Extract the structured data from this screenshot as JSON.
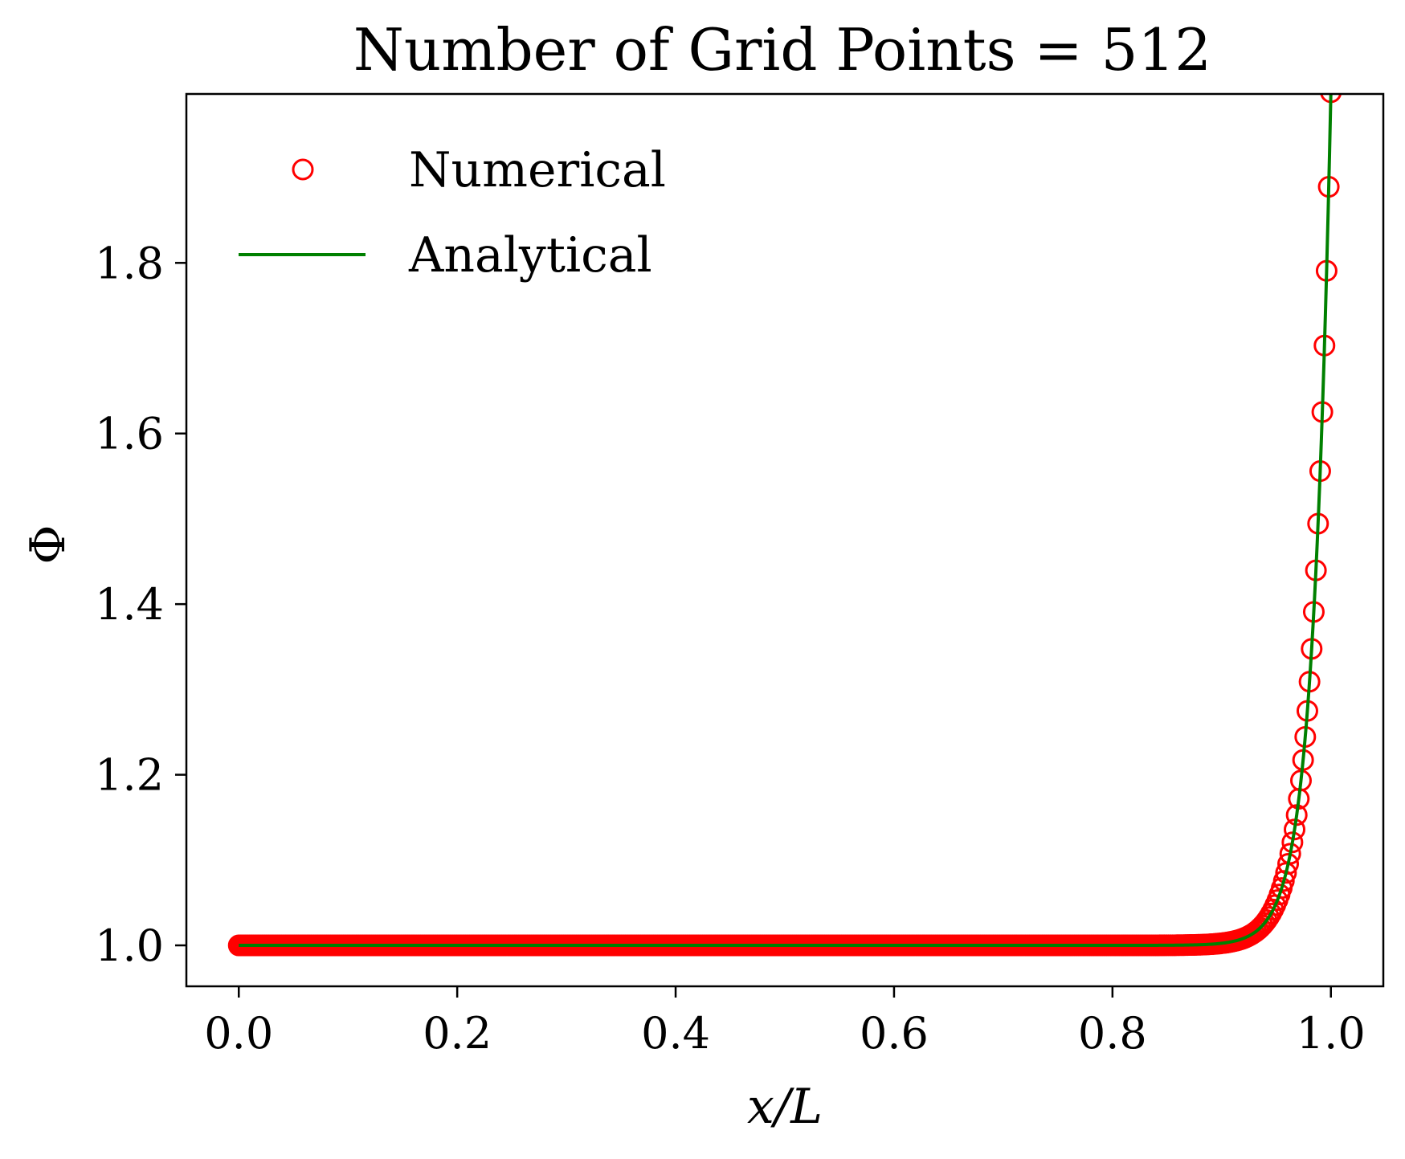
{
  "chart_data": {
    "type": "line",
    "title": "Number of Grid Points = 512",
    "xlabel": "x/L",
    "ylabel": "Φ",
    "xlim": [
      -0.048,
      1.048
    ],
    "ylim": [
      0.952,
      1.998
    ],
    "x_ticks": [
      0.0,
      0.2,
      0.4,
      0.6,
      0.8,
      1.0
    ],
    "x_tick_labels": [
      "0.0",
      "0.2",
      "0.4",
      "0.6",
      "0.8",
      "1.0"
    ],
    "y_ticks": [
      1.0,
      1.2,
      1.4,
      1.6,
      1.8
    ],
    "y_tick_labels": [
      "1.0",
      "1.2",
      "1.4",
      "1.6",
      "1.8"
    ],
    "grid": false,
    "legend_position": "top-left",
    "series": [
      {
        "name": "Numerical",
        "style": "markers",
        "marker": "open-circle",
        "color": "#ff0000",
        "n_points": 512,
        "x_range": [
          0.0,
          1.0
        ],
        "model": "Phi = 1 + (exp(k*x) - 1)/(exp(k) - 1)",
        "k": 60
      },
      {
        "name": "Analytical",
        "style": "line",
        "color": "#008000",
        "x_range": [
          0.0,
          1.0
        ],
        "model": "Phi = 1 + (exp(k*x) - 1)/(exp(k) - 1)",
        "k": 60
      }
    ],
    "legend": [
      {
        "label": "Numerical",
        "symbol": "open-circle",
        "color": "#ff0000"
      },
      {
        "label": "Analytical",
        "symbol": "line",
        "color": "#008000"
      }
    ]
  }
}
